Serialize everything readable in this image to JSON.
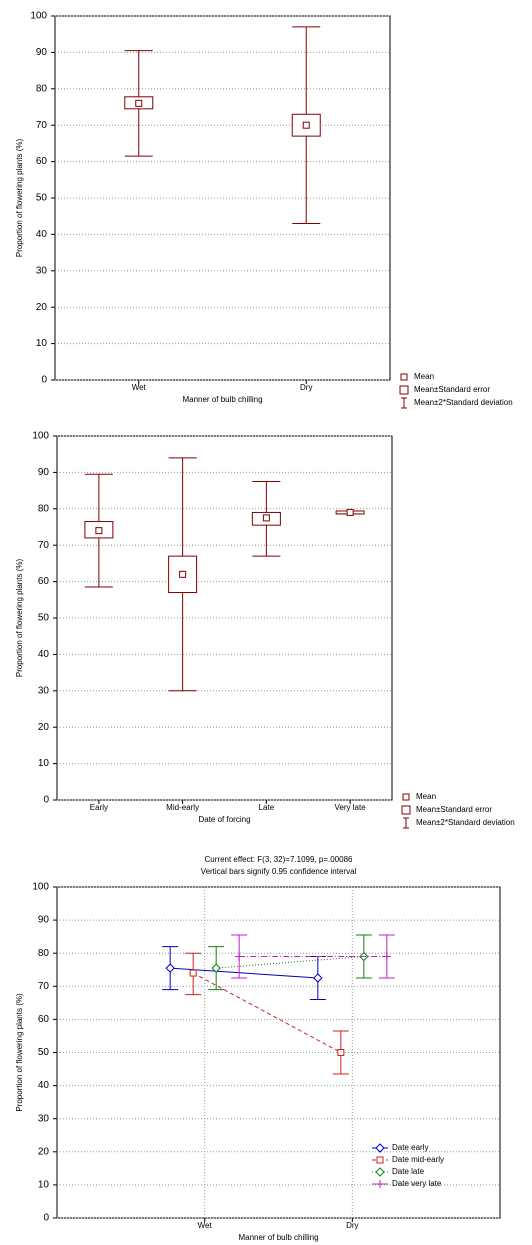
{
  "chart_data": [
    {
      "type": "box",
      "x_label": "Manner of bulb chilling",
      "y_label": "Proportion of flowering plants (%)",
      "categories": [
        "Wet",
        "Dry"
      ],
      "color": "#800000",
      "series": [
        {
          "name": "Mean",
          "values": [
            76,
            70
          ]
        },
        {
          "name": "Mean±Standard error",
          "low": [
            74.5,
            67
          ],
          "high": [
            77.8,
            73
          ]
        },
        {
          "name": "Mean±2*Standard deviation",
          "low": [
            61.5,
            43
          ],
          "high": [
            90.5,
            97
          ]
        }
      ],
      "ylim": [
        0,
        100
      ],
      "yticks": [
        0,
        10,
        20,
        30,
        40,
        50,
        60,
        70,
        80,
        90,
        100
      ],
      "grid": true,
      "legend": "outside lower right"
    },
    {
      "type": "box",
      "x_label": "Date of forcing",
      "y_label": "Proportion of flowering plants (%)",
      "categories": [
        "Early",
        "Mid-early",
        "Late",
        "Very late"
      ],
      "color": "#800000",
      "series": [
        {
          "name": "Mean",
          "values": [
            74,
            62,
            77.5,
            79
          ]
        },
        {
          "name": "Mean±Standard error",
          "low": [
            72,
            57,
            75.5,
            78.6
          ],
          "high": [
            76.5,
            67,
            79,
            79.4
          ]
        },
        {
          "name": "Mean±2*Standard deviation",
          "low": [
            58.5,
            30,
            67,
            78.6
          ],
          "high": [
            89.5,
            94,
            87.5,
            79.4
          ]
        }
      ],
      "ylim": [
        0,
        100
      ],
      "yticks": [
        0,
        10,
        20,
        30,
        40,
        50,
        60,
        70,
        80,
        90,
        100
      ],
      "grid": true,
      "legend": "outside lower right"
    },
    {
      "type": "line",
      "title": "Current effect: F(3, 32)=7.1099, p=.00086",
      "subtitle": "Vertical bars signify 0.95 confidence interval",
      "x_label": "Manner of bulb chilling",
      "y_label": "Proportion of flowering plants (%)",
      "categories": [
        "Wet",
        "Dry"
      ],
      "series": [
        {
          "name": "Date early",
          "color": "#0000c0",
          "marker": "diamond",
          "dash": "none",
          "values": [
            75.5,
            72.5
          ],
          "ci_low": [
            69,
            66
          ],
          "ci_high": [
            82,
            79
          ]
        },
        {
          "name": "Date mid-early",
          "color": "#d02020",
          "marker": "square",
          "dash": "4 3",
          "values": [
            74,
            50
          ],
          "ci_low": [
            67.5,
            43.5
          ],
          "ci_high": [
            80,
            56.5
          ]
        },
        {
          "name": "Date late",
          "color": "#108010",
          "marker": "diamond",
          "dash": "1 2",
          "values": [
            75.5,
            79
          ],
          "ci_low": [
            69,
            72.5
          ],
          "ci_high": [
            82,
            85.5
          ]
        },
        {
          "name": "Date very late",
          "color": "#c020c0",
          "marker": "plus",
          "dash": "6 2 1 2",
          "values": [
            79,
            79
          ],
          "ci_low": [
            72.5,
            72.5
          ],
          "ci_high": [
            85.5,
            85.5
          ]
        }
      ],
      "ylim": [
        0,
        100
      ],
      "yticks": [
        0,
        10,
        20,
        30,
        40,
        50,
        60,
        70,
        80,
        90,
        100
      ],
      "grid": true,
      "legend": "lower right"
    }
  ]
}
